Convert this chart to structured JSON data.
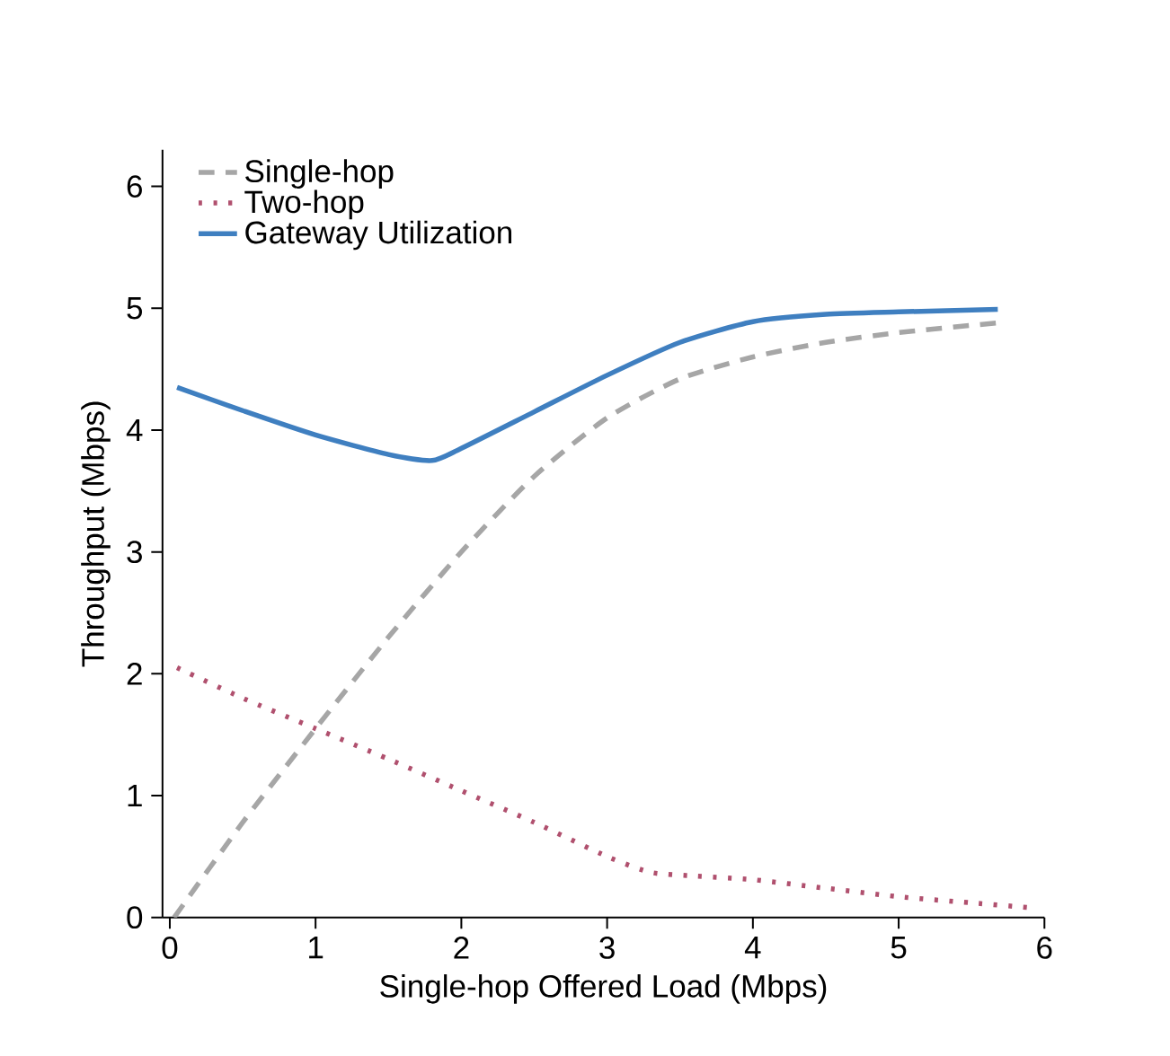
{
  "chart_data": {
    "type": "line",
    "xlabel": "Single-hop Offered Load (Mbps)",
    "ylabel": "Throughput (Mbps)",
    "xlim": [
      -0.05,
      6
    ],
    "ylim": [
      0,
      6.3
    ],
    "xticks": [
      0,
      1,
      2,
      3,
      4,
      5,
      6
    ],
    "yticks": [
      0,
      1,
      2,
      3,
      4,
      5,
      6
    ],
    "grid": false,
    "legend": "top left",
    "marker": "none",
    "series": [
      {
        "name": "Single-hop",
        "color": "#a6a6a6",
        "line_style": "dashed",
        "x": [
          0.03,
          0.5,
          1,
          1.5,
          2,
          2.5,
          3,
          3.5,
          4,
          4.5,
          5,
          5.68
        ],
        "values": [
          0,
          0.78,
          1.55,
          2.3,
          3.0,
          3.62,
          4.1,
          4.42,
          4.6,
          4.72,
          4.8,
          4.88
        ]
      },
      {
        "name": "Two-hop",
        "color": "#b0506e",
        "line_style": "dotted",
        "x": [
          0.05,
          0.5,
          1,
          1.5,
          2,
          2.5,
          3,
          3.3,
          3.6,
          4,
          4.5,
          5,
          5.5,
          5.9
        ],
        "values": [
          2.05,
          1.8,
          1.55,
          1.3,
          1.04,
          0.78,
          0.5,
          0.37,
          0.34,
          0.31,
          0.24,
          0.17,
          0.12,
          0.08
        ]
      },
      {
        "name": "Gateway Utilization",
        "color": "#3f7fc0",
        "line_style": "solid",
        "x": [
          0.05,
          0.5,
          1,
          1.5,
          1.8,
          2,
          2.5,
          3,
          3.5,
          4,
          4.5,
          5,
          5.68
        ],
        "values": [
          4.35,
          4.16,
          3.96,
          3.8,
          3.75,
          3.85,
          4.15,
          4.45,
          4.72,
          4.89,
          4.95,
          4.97,
          4.99
        ]
      }
    ]
  }
}
